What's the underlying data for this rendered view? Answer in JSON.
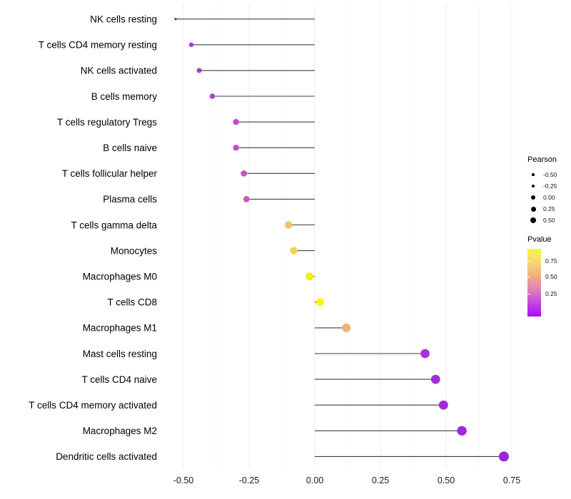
{
  "chart_data": {
    "type": "lollipop",
    "title": "",
    "xlabel": "",
    "ylabel": "",
    "x_ticks": [
      -0.5,
      -0.25,
      0.0,
      0.25,
      0.5,
      0.75
    ],
    "x_tick_labels": [
      "-0.50",
      "-0.25",
      "0.00",
      "0.25",
      "0.50",
      "0.75"
    ],
    "xlim": [
      -0.59,
      0.86
    ],
    "grid": true,
    "size_encoding": "Pearson",
    "color_encoding": "Pvalue",
    "points": [
      {
        "label": "NK cells resting",
        "pearson": -0.53,
        "pvalue": 0.03,
        "color": "#8A2BD0",
        "radius": 1.7
      },
      {
        "label": "T cells CD4 memory resting",
        "pearson": -0.47,
        "pvalue": 0.1,
        "color": "#A43BD1",
        "radius": 3.2
      },
      {
        "label": "NK cells activated",
        "pearson": -0.44,
        "pvalue": 0.1,
        "color": "#A43BD1",
        "radius": 3.5
      },
      {
        "label": "B cells memory",
        "pearson": -0.39,
        "pvalue": 0.13,
        "color": "#AB40D3",
        "radius": 3.8
      },
      {
        "label": "T cells regulatory  Tregs",
        "pearson": -0.3,
        "pvalue": 0.2,
        "color": "#BC4EC9",
        "radius": 4.2
      },
      {
        "label": "B cells naive",
        "pearson": -0.3,
        "pvalue": 0.2,
        "color": "#BC4EC9",
        "radius": 4.2
      },
      {
        "label": "T cells follicular helper",
        "pearson": -0.27,
        "pvalue": 0.22,
        "color": "#C254C6",
        "radius": 4.3
      },
      {
        "label": "Plasma cells",
        "pearson": -0.26,
        "pvalue": 0.24,
        "color": "#C85AC2",
        "radius": 4.4
      },
      {
        "label": "T cells gamma delta",
        "pearson": -0.1,
        "pvalue": 0.65,
        "color": "#F0C467",
        "radius": 5.2
      },
      {
        "label": "Monocytes",
        "pearson": -0.08,
        "pvalue": 0.72,
        "color": "#F2D254",
        "radius": 5.2
      },
      {
        "label": "Macrophages M0",
        "pearson": -0.02,
        "pvalue": 0.87,
        "color": "#F8EE16",
        "radius": 5.5
      },
      {
        "label": "T cells CD8",
        "pearson": 0.02,
        "pvalue": 0.9,
        "color": "#FBF603",
        "radius": 5.5
      },
      {
        "label": "Macrophages M1",
        "pearson": 0.12,
        "pvalue": 0.58,
        "color": "#EFB074",
        "radius": 6.0
      },
      {
        "label": "Mast cells resting",
        "pearson": 0.42,
        "pvalue": 0.08,
        "color": "#A92FD6",
        "radius": 6.3
      },
      {
        "label": "T cells CD4 naive",
        "pearson": 0.46,
        "pvalue": 0.07,
        "color": "#A22CDA",
        "radius": 6.4
      },
      {
        "label": "T cells CD4 memory activated",
        "pearson": 0.49,
        "pvalue": 0.07,
        "color": "#A22CDA",
        "radius": 6.5
      },
      {
        "label": "Macrophages M2",
        "pearson": 0.56,
        "pvalue": 0.06,
        "color": "#9F28DC",
        "radius": 6.7
      },
      {
        "label": "Dendritic cells activated",
        "pearson": 0.72,
        "pvalue": 0.05,
        "color": "#9C23E0",
        "radius": 7.0
      }
    ],
    "legend": {
      "position": "right",
      "size": {
        "title": "Pearson",
        "entries": [
          {
            "label": "-0.50",
            "radius": 1.6
          },
          {
            "label": "-0.25",
            "radius": 2.3
          },
          {
            "label": "0.00",
            "radius": 3.0
          },
          {
            "label": "0.25",
            "radius": 3.5
          },
          {
            "label": "0.50",
            "radius": 4.0
          }
        ]
      },
      "color": {
        "title": "Pvalue",
        "ticks": [
          {
            "label": "0.75",
            "pos": 0.178
          },
          {
            "label": "0.50",
            "pos": 0.415
          },
          {
            "label": "0.25",
            "pos": 0.663
          }
        ],
        "gradient": [
          "#FBF545",
          "#F7D873",
          "#EFAE80",
          "#DE82B6",
          "#C346DE",
          "#A60DF3"
        ]
      }
    },
    "style": {
      "stem_color": "#3F3F3F",
      "major_grid_color": "#EDEDED",
      "minor_grid_color": "#F7F7F7",
      "label_color": "#000000",
      "tick_label_color": "#1A1A1A"
    }
  }
}
